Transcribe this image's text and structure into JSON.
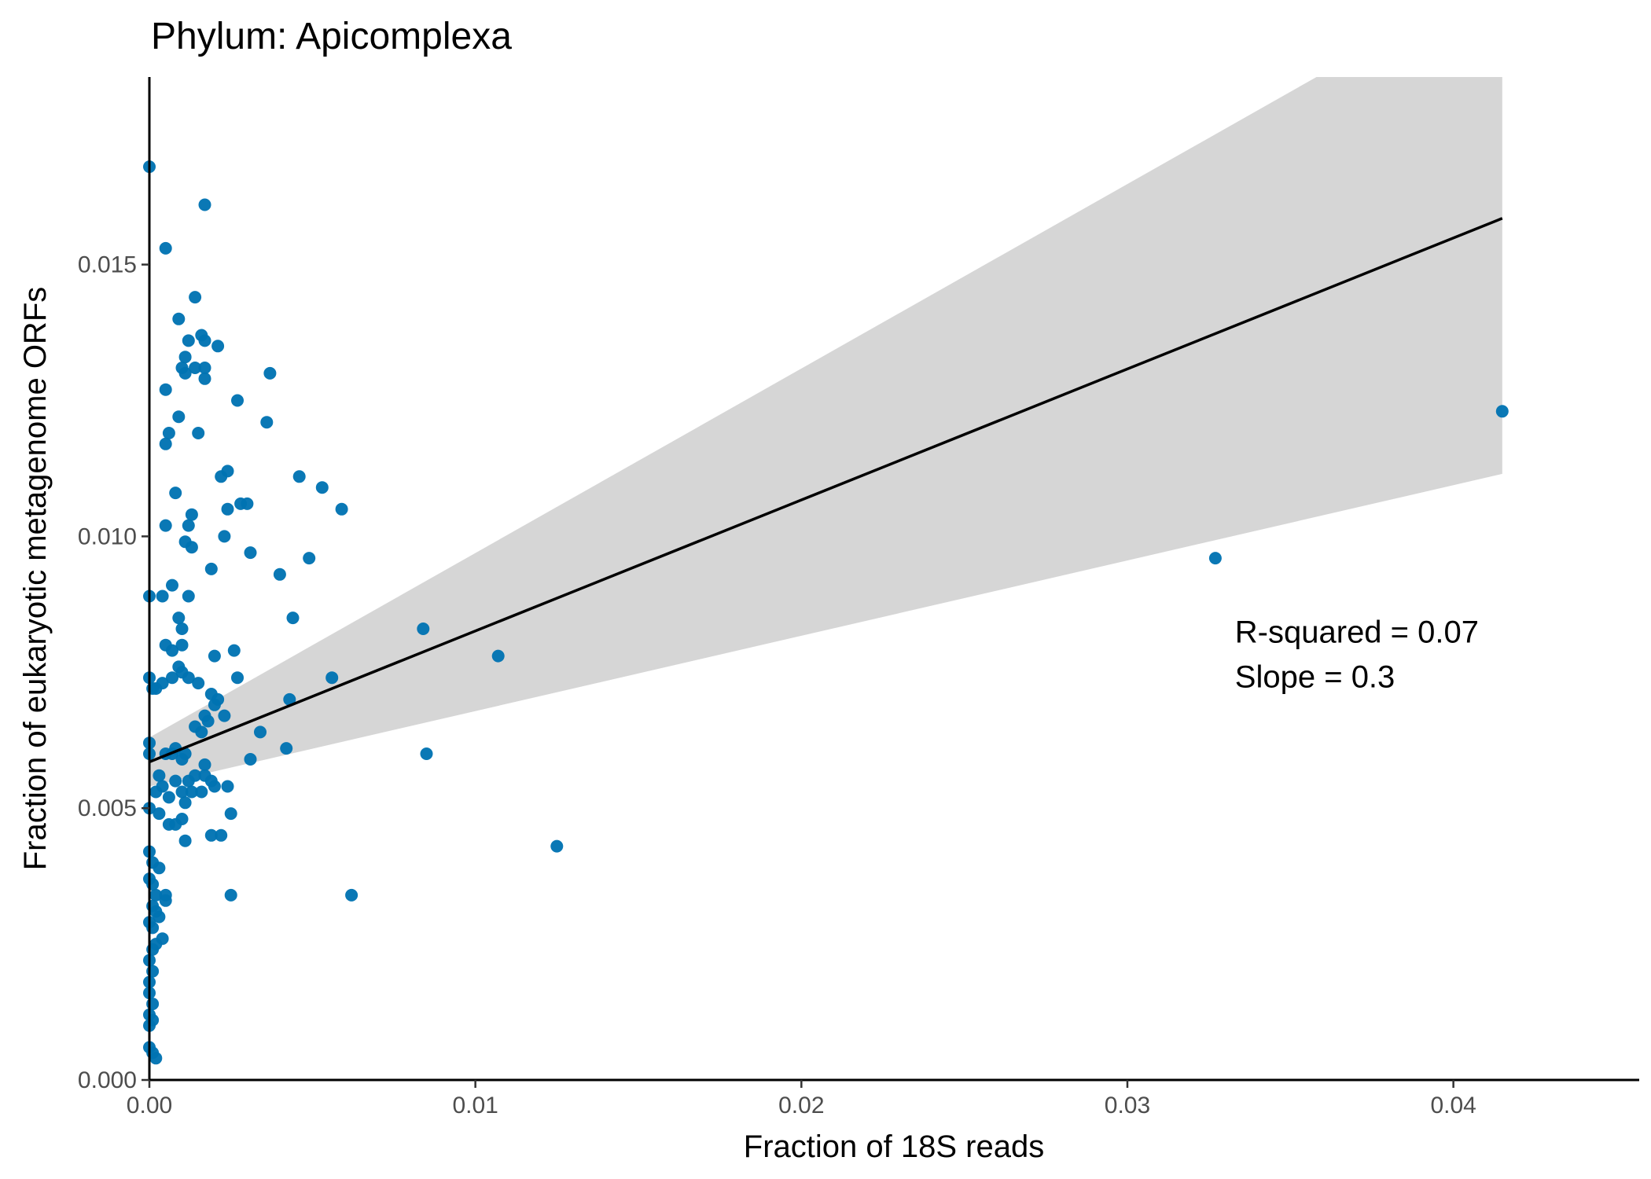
{
  "chart_data": {
    "type": "scatter",
    "title": "Phylum:  Apicomplexa",
    "xlabel": "Fraction of 18S reads",
    "ylabel": "Fraction of eukaryotic metagenome ORFs",
    "xlim": [
      0,
      0.0457
    ],
    "ylim": [
      0,
      0.01845
    ],
    "x_ticks": [
      0,
      0.01,
      0.02,
      0.03,
      0.04
    ],
    "x_tick_labels": [
      "0.00",
      "0.01",
      "0.02",
      "0.03",
      "0.04"
    ],
    "y_ticks": [
      0,
      0.005,
      0.01,
      0.015
    ],
    "y_tick_labels": [
      "0.000",
      "0.005",
      "0.010",
      "0.015"
    ],
    "grid": false,
    "legend": "none",
    "colors": {
      "points": "#0072b2",
      "line": "#000000",
      "band": "#d6d6d6",
      "axis": "#000000"
    },
    "annotations": [
      {
        "text": "R-squared =  0.07",
        "x": 0.0333,
        "y": 0.00805
      },
      {
        "text": "Slope =  0.3",
        "x": 0.0333,
        "y": 0.00722
      }
    ],
    "regression": {
      "x_start": 0,
      "x_end": 0.0415,
      "y_start": 0.00585,
      "y_end": 0.01585,
      "ci_lower": [
        [
          0,
          0.0054
        ],
        [
          0.0415,
          0.01115
        ]
      ],
      "ci_upper": [
        [
          0,
          0.0063
        ],
        [
          0.0358,
          0.01845
        ],
        [
          0.0415,
          0.01845
        ]
      ]
    },
    "series": [
      {
        "points": [
          [
            0.0,
            0.0168
          ],
          [
            0.0017,
            0.0161
          ],
          [
            0.0005,
            0.0153
          ],
          [
            0.0014,
            0.0144
          ],
          [
            0.0009,
            0.014
          ],
          [
            0.0016,
            0.0137
          ],
          [
            0.0017,
            0.0136
          ],
          [
            0.0012,
            0.0136
          ],
          [
            0.0021,
            0.0135
          ],
          [
            0.0011,
            0.0133
          ],
          [
            0.001,
            0.0131
          ],
          [
            0.0014,
            0.0131
          ],
          [
            0.0017,
            0.0131
          ],
          [
            0.0011,
            0.013
          ],
          [
            0.0037,
            0.013
          ],
          [
            0.0017,
            0.0129
          ],
          [
            0.0005,
            0.0127
          ],
          [
            0.0027,
            0.0125
          ],
          [
            0.0009,
            0.0122
          ],
          [
            0.0036,
            0.0121
          ],
          [
            0.0006,
            0.0119
          ],
          [
            0.0015,
            0.0119
          ],
          [
            0.0005,
            0.0117
          ],
          [
            0.0024,
            0.0112
          ],
          [
            0.0022,
            0.0111
          ],
          [
            0.0046,
            0.0111
          ],
          [
            0.0053,
            0.0109
          ],
          [
            0.0008,
            0.0108
          ],
          [
            0.0028,
            0.0106
          ],
          [
            0.003,
            0.0106
          ],
          [
            0.0024,
            0.0105
          ],
          [
            0.0059,
            0.0105
          ],
          [
            0.0013,
            0.0104
          ],
          [
            0.0012,
            0.0102
          ],
          [
            0.0005,
            0.0102
          ],
          [
            0.0023,
            0.01
          ],
          [
            0.0011,
            0.0099
          ],
          [
            0.0013,
            0.0098
          ],
          [
            0.0031,
            0.0097
          ],
          [
            0.0049,
            0.0096
          ],
          [
            0.0019,
            0.0094
          ],
          [
            0.004,
            0.0093
          ],
          [
            0.0007,
            0.0091
          ],
          [
            0.0,
            0.0089
          ],
          [
            0.0004,
            0.0089
          ],
          [
            0.0012,
            0.0089
          ],
          [
            0.0009,
            0.0085
          ],
          [
            0.0044,
            0.0085
          ],
          [
            0.001,
            0.0083
          ],
          [
            0.0084,
            0.0083
          ],
          [
            0.0005,
            0.008
          ],
          [
            0.001,
            0.008
          ],
          [
            0.0007,
            0.0079
          ],
          [
            0.0026,
            0.0079
          ],
          [
            0.002,
            0.0078
          ],
          [
            0.0107,
            0.0078
          ],
          [
            0.0009,
            0.0076
          ],
          [
            0.001,
            0.0075
          ],
          [
            0.0012,
            0.0074
          ],
          [
            0.0,
            0.0074
          ],
          [
            0.0007,
            0.0074
          ],
          [
            0.0027,
            0.0074
          ],
          [
            0.0056,
            0.0074
          ],
          [
            0.0004,
            0.0073
          ],
          [
            0.0015,
            0.0073
          ],
          [
            0.0002,
            0.0072
          ],
          [
            0.0001,
            0.0072
          ],
          [
            0.0019,
            0.0071
          ],
          [
            0.0021,
            0.007
          ],
          [
            0.0043,
            0.007
          ],
          [
            0.002,
            0.0069
          ],
          [
            0.0017,
            0.0067
          ],
          [
            0.0023,
            0.0067
          ],
          [
            0.0018,
            0.0066
          ],
          [
            0.0014,
            0.0065
          ],
          [
            0.0016,
            0.0064
          ],
          [
            0.0034,
            0.0064
          ],
          [
            0.0,
            0.0062
          ],
          [
            0.0008,
            0.0061
          ],
          [
            0.0042,
            0.0061
          ],
          [
            0.0085,
            0.006
          ],
          [
            0.0005,
            0.006
          ],
          [
            0.0007,
            0.006
          ],
          [
            0.0,
            0.006
          ],
          [
            0.0011,
            0.006
          ],
          [
            0.001,
            0.0059
          ],
          [
            0.0031,
            0.0059
          ],
          [
            0.0017,
            0.0058
          ],
          [
            0.0003,
            0.0056
          ],
          [
            0.0014,
            0.0056
          ],
          [
            0.0017,
            0.0056
          ],
          [
            0.0008,
            0.0055
          ],
          [
            0.0012,
            0.0055
          ],
          [
            0.0019,
            0.0055
          ],
          [
            0.0004,
            0.0054
          ],
          [
            0.002,
            0.0054
          ],
          [
            0.0024,
            0.0054
          ],
          [
            0.001,
            0.0053
          ],
          [
            0.0013,
            0.0053
          ],
          [
            0.0002,
            0.0053
          ],
          [
            0.0016,
            0.0053
          ],
          [
            0.0006,
            0.0052
          ],
          [
            0.0011,
            0.0051
          ],
          [
            0.0,
            0.005
          ],
          [
            0.0003,
            0.0049
          ],
          [
            0.001,
            0.0048
          ],
          [
            0.0025,
            0.0049
          ],
          [
            0.0008,
            0.0047
          ],
          [
            0.0006,
            0.0047
          ],
          [
            0.0019,
            0.0045
          ],
          [
            0.0022,
            0.0045
          ],
          [
            0.0011,
            0.0044
          ],
          [
            0.0125,
            0.0043
          ],
          [
            0.0,
            0.0042
          ],
          [
            0.0001,
            0.004
          ],
          [
            0.0003,
            0.0039
          ],
          [
            0.0,
            0.0037
          ],
          [
            0.0001,
            0.0036
          ],
          [
            0.0002,
            0.0034
          ],
          [
            0.0005,
            0.0034
          ],
          [
            0.0025,
            0.0034
          ],
          [
            0.0062,
            0.0034
          ],
          [
            0.0005,
            0.0033
          ],
          [
            0.0001,
            0.0032
          ],
          [
            0.0002,
            0.0031
          ],
          [
            0.0003,
            0.003
          ],
          [
            0.0,
            0.0029
          ],
          [
            0.0001,
            0.0028
          ],
          [
            0.0004,
            0.0026
          ],
          [
            0.0002,
            0.0025
          ],
          [
            0.0001,
            0.0024
          ],
          [
            0.0,
            0.0022
          ],
          [
            0.0001,
            0.002
          ],
          [
            0.0,
            0.0018
          ],
          [
            0.0,
            0.0016
          ],
          [
            0.0001,
            0.0014
          ],
          [
            0.0,
            0.0012
          ],
          [
            0.0001,
            0.0011
          ],
          [
            0.0,
            0.001
          ],
          [
            0.0,
            0.0006
          ],
          [
            0.0001,
            0.0005
          ],
          [
            0.0002,
            0.0004
          ],
          [
            0.0327,
            0.0096
          ],
          [
            0.0415,
            0.0123
          ]
        ]
      }
    ]
  }
}
